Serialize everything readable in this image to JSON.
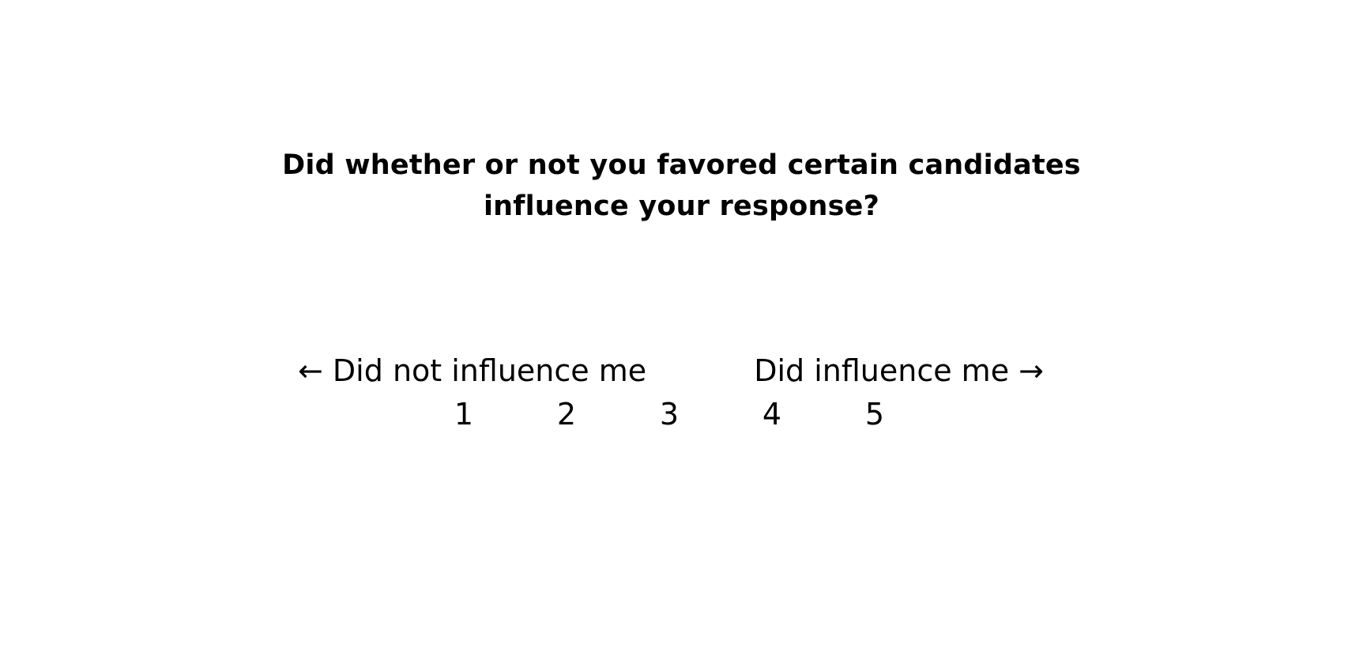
{
  "question": {
    "line1": "Did whether or not you favored certain candidates",
    "line2": "influence your response?"
  },
  "scale": {
    "left_label": "← Did not influence me",
    "right_label": "Did influence me →",
    "options": [
      "1",
      "2",
      "3",
      "4",
      "5"
    ]
  }
}
